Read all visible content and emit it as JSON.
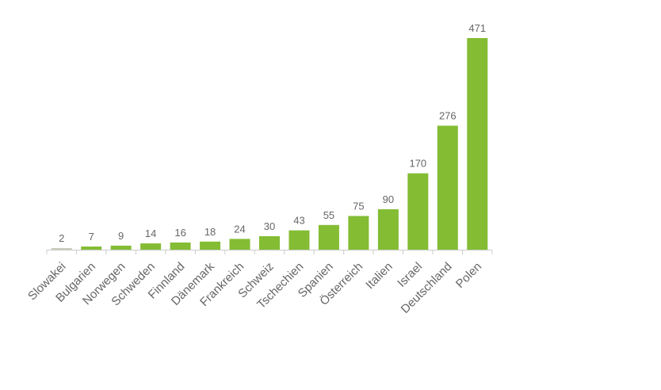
{
  "chart_data": {
    "type": "bar",
    "title": "",
    "xlabel": "",
    "ylabel": "",
    "categories": [
      "Slowakei",
      "Bulgarien",
      "Norwegen",
      "Schweden",
      "Finnland",
      "Dänemark",
      "Frankreich",
      "Schweiz",
      "Tschechien",
      "Spanien",
      "Österreich",
      "Italien",
      "Israel",
      "Deutschland",
      "Polen"
    ],
    "values": [
      2,
      7,
      9,
      14,
      16,
      18,
      24,
      30,
      43,
      55,
      75,
      90,
      170,
      276,
      471
    ],
    "value_labels": [
      "2",
      "7",
      "9",
      "14",
      "16",
      "18",
      "24",
      "30",
      "43",
      "55",
      "75",
      "90",
      "170",
      "276",
      "471"
    ],
    "ylim": [
      0,
      471
    ],
    "grid": false,
    "legend": "none",
    "colors": {
      "bar": "#84bc34",
      "first_bar": "#c6cdb8",
      "axis": "#cccccc",
      "text": "#666666"
    }
  }
}
